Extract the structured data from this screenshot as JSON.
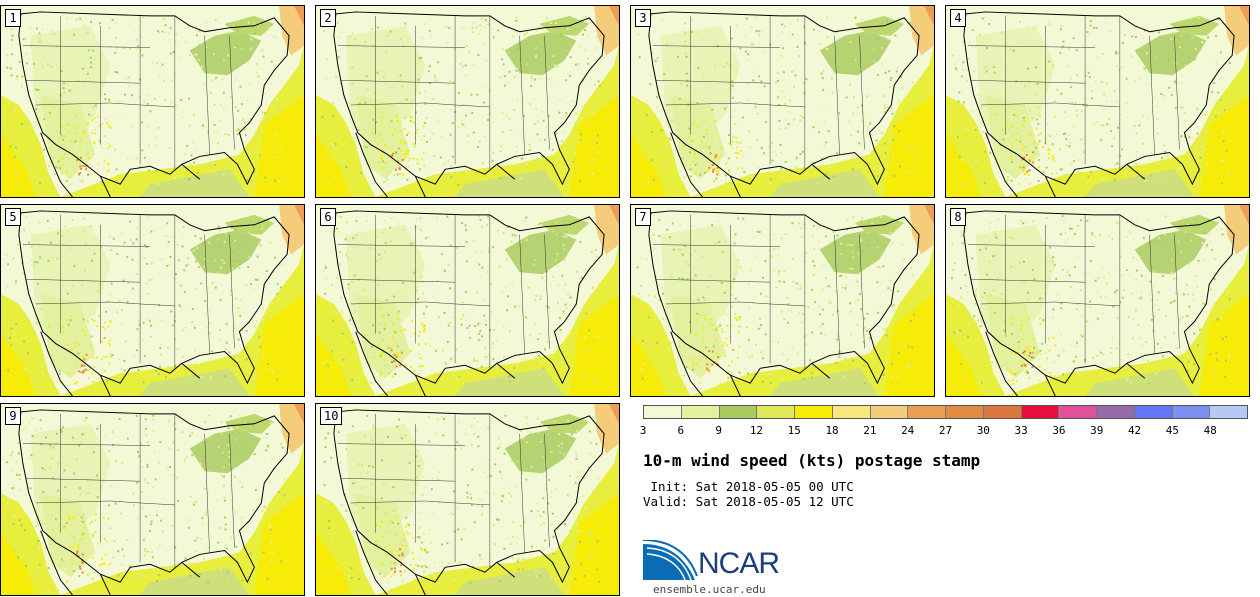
{
  "panels": [
    {
      "label": "1"
    },
    {
      "label": "2"
    },
    {
      "label": "3"
    },
    {
      "label": "4"
    },
    {
      "label": "5"
    },
    {
      "label": "6"
    },
    {
      "label": "7"
    },
    {
      "label": "8"
    },
    {
      "label": "9"
    },
    {
      "label": "10"
    }
  ],
  "colorbar": {
    "colors": [
      "#f2f9d6",
      "#e3f09e",
      "#a9cc61",
      "#dfe95a",
      "#f6ec08",
      "#fae77e",
      "#f5cc7a",
      "#ec9f54",
      "#e38a41",
      "#db7840",
      "#e90e3f",
      "#e0509b",
      "#9669aa",
      "#6475f5",
      "#7e91f2",
      "#b8c8f6"
    ],
    "ticks": [
      "3",
      "6",
      "9",
      "12",
      "15",
      "18",
      "21",
      "24",
      "27",
      "30",
      "33",
      "36",
      "39",
      "42",
      "45",
      "48"
    ]
  },
  "title": "10-m wind speed (kts) postage stamp",
  "init": " Init: Sat 2018-05-05 00 UTC",
  "valid": "Valid: Sat 2018-05-05 12 UTC",
  "logo": {
    "text": "NCAR",
    "url": "ensemble.ucar.edu"
  }
}
